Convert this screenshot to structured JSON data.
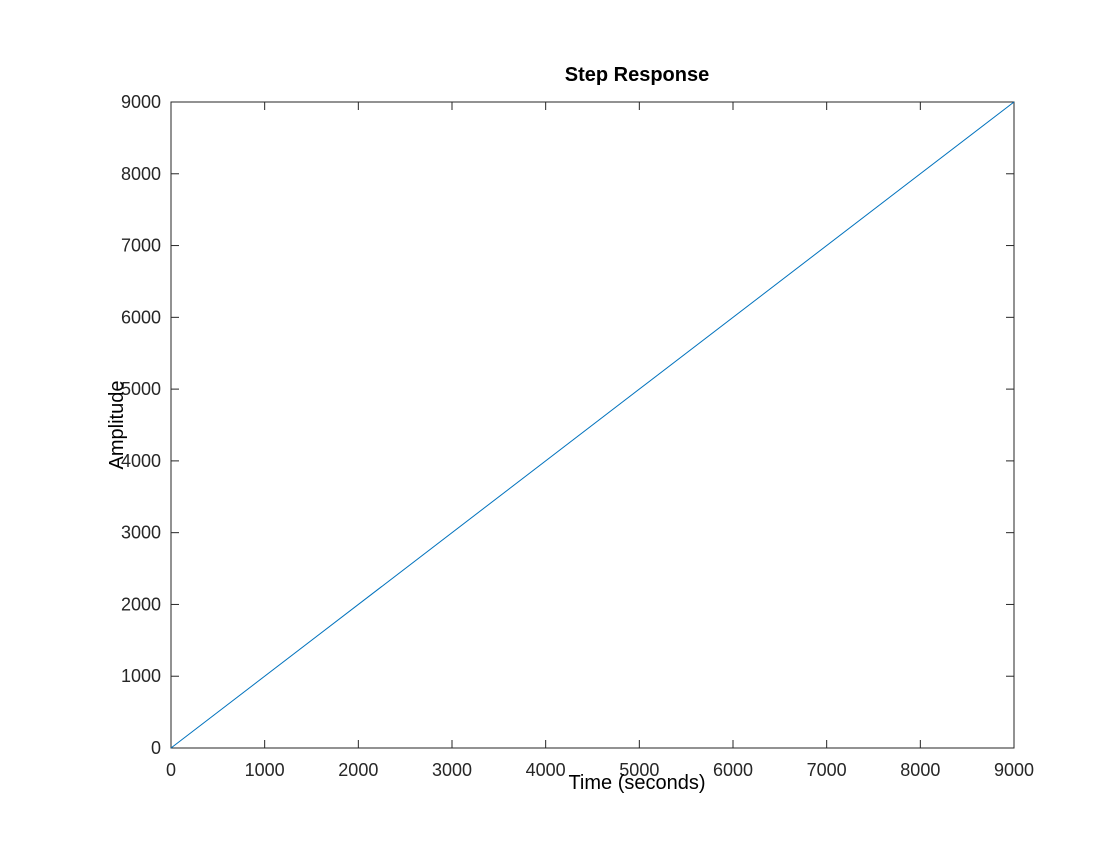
{
  "chart_data": {
    "type": "line",
    "title": "Step Response",
    "xlabel": "Time (seconds)",
    "ylabel": "Amplitude",
    "xlim": [
      0,
      9000
    ],
    "ylim": [
      0,
      9000
    ],
    "xticks": [
      0,
      1000,
      2000,
      3000,
      4000,
      5000,
      6000,
      7000,
      8000,
      9000
    ],
    "yticks": [
      0,
      1000,
      2000,
      3000,
      4000,
      5000,
      6000,
      7000,
      8000,
      9000
    ],
    "grid": false,
    "legend": false,
    "line_color": "#0072BD",
    "axis_color": "#262626",
    "series": [
      {
        "x": [
          0,
          9000
        ],
        "y": [
          0,
          9000
        ]
      }
    ]
  }
}
